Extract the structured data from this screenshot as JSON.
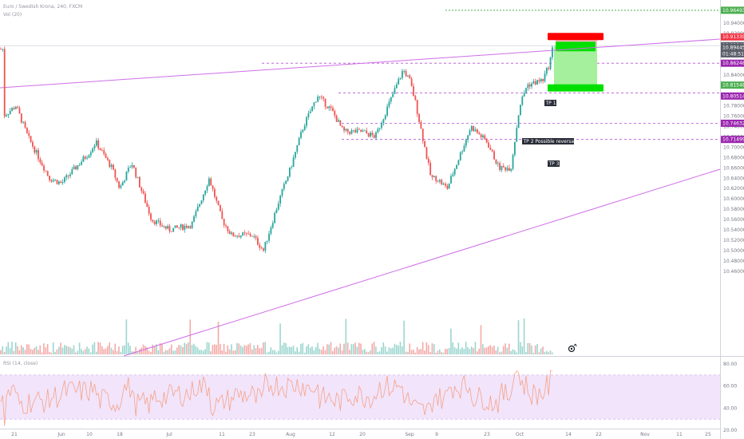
{
  "header": {
    "symbol_line": "Euro / Swedish Krona, 240, FXCM",
    "volume_line": "Vol (20)"
  },
  "rsi_panel": {
    "label": "RSI (14, close)",
    "levels": [
      "80.00",
      "60.00",
      "40.00",
      "20.00"
    ]
  },
  "price_axis": {
    "ticks": [
      "10.94000",
      "10.92000",
      "10.90000",
      "10.88000",
      "10.86000",
      "10.84000",
      "10.82000",
      "10.80000",
      "10.78000",
      "10.76000",
      "10.74000",
      "10.72000",
      "10.70000",
      "10.68000",
      "10.66000",
      "10.64000",
      "10.62000",
      "10.60000",
      "10.58000",
      "10.56000",
      "10.54000",
      "10.52000",
      "10.50000",
      "10.48000",
      "10.46000"
    ]
  },
  "time_axis": {
    "ticks": [
      "21",
      "Jun",
      "10",
      "18",
      "Jul",
      "11",
      "23",
      "Aug",
      "12",
      "20",
      "Sep",
      "9",
      "23",
      "Oct",
      "14",
      "22",
      "Nov",
      "11",
      "25"
    ]
  },
  "price_tags": [
    {
      "label": "10.96493",
      "bg": "#4caf50",
      "fg": "#ffffff"
    },
    {
      "label": "10.91339",
      "bg": "#f23645",
      "fg": "#ffffff"
    },
    {
      "label": "10.89641",
      "bg": "#5d606b",
      "fg": "#ffffff"
    },
    {
      "label": "10.89445",
      "bg": "#5d606b",
      "fg": "#ffffff"
    },
    {
      "label": "01:48:51",
      "bg": "#5d606b",
      "fg": "#ffffff"
    },
    {
      "label": "10.86248",
      "bg": "#9c27b0",
      "fg": "#ffffff"
    },
    {
      "label": "10.81548",
      "bg": "#4caf50",
      "fg": "#ffffff"
    },
    {
      "label": "10.80514",
      "bg": "#9c27b0",
      "fg": "#ffffff"
    },
    {
      "label": "10.74632",
      "bg": "#9c27b0",
      "fg": "#ffffff"
    },
    {
      "label": "10.71499",
      "bg": "#9c27b0",
      "fg": "#ffffff"
    }
  ],
  "annotations": {
    "tp1": "TP 1",
    "tp2": "TP 2 Possible reversal",
    "tp3": "TP 3"
  },
  "colors": {
    "up": "#26a69a",
    "down": "#ef5350",
    "trendline": "#cf6ee8",
    "level": "#b24fd6",
    "target_zone": "#a5f09c",
    "target_bar": "#00e000",
    "stop_zone": "#f7b8bf",
    "stop_bar": "#ff0000",
    "rsi_line": "#f6a287",
    "rsi_band": "#f1e4fb"
  },
  "chart_data": {
    "type": "candlestick",
    "symbol": "Euro / Swedish Krona",
    "timeframe": "240",
    "source": "FXCM",
    "ylim": [
      10.44,
      10.96
    ],
    "levels": [
      {
        "label": "10.96493",
        "value": 10.96493,
        "style": "dotted-green"
      },
      {
        "label": "10.91339",
        "value": 10.91339,
        "style": "stop"
      },
      {
        "label": "10.86248",
        "value": 10.86248,
        "style": "dashed-purple"
      },
      {
        "label": "10.81548",
        "value": 10.81548,
        "style": "target"
      },
      {
        "label": "10.80514",
        "value": 10.80514,
        "style": "dashed-purple"
      },
      {
        "label": "10.74632",
        "value": 10.74632,
        "style": "dashed-purple"
      },
      {
        "label": "10.71499",
        "value": 10.71499,
        "style": "dashed-purple"
      }
    ],
    "last_price": 10.89641,
    "bid_price": 10.89445,
    "countdown": "01:48:51",
    "rsi_levels": [
      80,
      60,
      40,
      20
    ],
    "price_path": [
      [
        "21",
        10.76
      ],
      [
        "Jun",
        10.63
      ],
      [
        "10",
        10.69
      ],
      [
        "18",
        10.62
      ],
      [
        "Jul",
        10.54
      ],
      [
        "11",
        10.56
      ],
      [
        "23",
        10.53
      ],
      [
        "Aug",
        10.66
      ],
      [
        "12",
        10.77
      ],
      [
        "20",
        10.73
      ],
      [
        "Sep",
        10.83
      ],
      [
        "9",
        10.64
      ],
      [
        "23",
        10.71
      ],
      [
        "Oct",
        10.78
      ],
      [
        "14",
        10.89
      ]
    ]
  }
}
